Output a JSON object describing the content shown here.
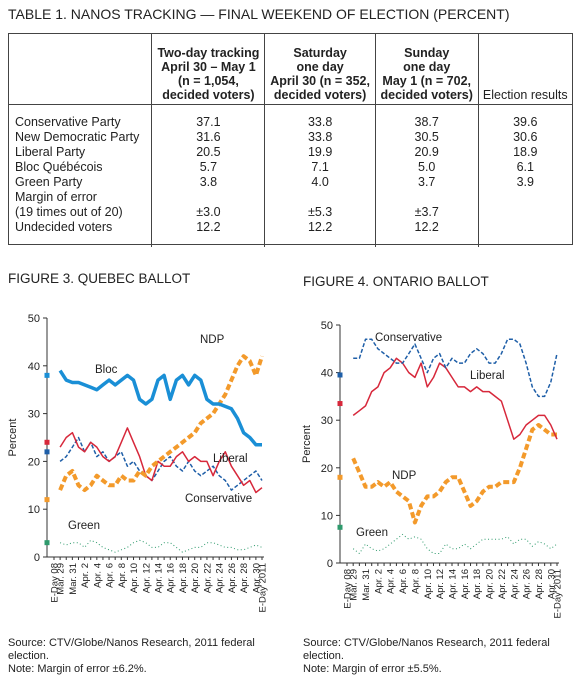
{
  "table": {
    "title": "TABLE 1. NANOS TRACKING — FINAL WEEKEND OF ELECTION (PERCENT)",
    "columns": [
      [
        "Two-day tracking",
        "April 30 – May 1",
        "(n = 1,054,",
        "decided voters)"
      ],
      [
        "Saturday",
        "one day",
        "April 30 (n = 352,",
        "decided voters)"
      ],
      [
        "Sunday",
        "one day",
        "May 1 (n = 702,",
        "decided voters)"
      ],
      [
        "Election results"
      ]
    ],
    "rows": [
      [
        "Conservative Party",
        "37.1",
        "33.8",
        "38.7",
        "39.6"
      ],
      [
        "New Democratic Party",
        "31.6",
        "33.8",
        "30.5",
        "30.6"
      ],
      [
        "Liberal Party",
        "20.5",
        "19.9",
        "20.9",
        "18.9"
      ],
      [
        "Bloc Québécois",
        "5.7",
        "7.1",
        "5.0",
        "6.1"
      ],
      [
        "Green Party",
        "3.8",
        "4.0",
        "3.7",
        "3.9"
      ],
      [
        "Margin of error\n(19 times out of 20)",
        "±3.0",
        "±5.3",
        "±3.7"
      ],
      [
        "Undecided voters",
        "12.2",
        "12.2",
        "12.2"
      ]
    ]
  },
  "chart_data": [
    {
      "type": "line",
      "title": "FIGURE 3. QUEBEC BALLOT",
      "ylabel": "Percent",
      "categories": [
        "E-Day 08",
        "Mar. 29",
        null,
        "Mar. 31",
        null,
        "Apr. 2",
        null,
        "Apr. 4",
        null,
        "Apr. 6",
        null,
        "Apr. 8",
        null,
        "Apr. 10",
        null,
        "Apr. 12",
        null,
        "Apr. 14",
        null,
        "Apr. 16",
        null,
        "Apr. 18",
        null,
        "Apr. 20",
        null,
        "Apr. 22",
        null,
        "Apr. 24",
        null,
        "Apr. 26",
        null,
        "Apr. 28",
        null,
        "Apr. 30",
        "E-Day 2011"
      ],
      "ylim": [
        0,
        50
      ],
      "yticks": [
        0,
        10,
        20,
        30,
        40,
        50
      ],
      "series": [
        {
          "name": "Green",
          "color": "#2e9a6c",
          "line_style": "dotted",
          "values": [
            3,
            3,
            2.5,
            3,
            3,
            2,
            3.5,
            3,
            2,
            1.5,
            1,
            1.5,
            2,
            3,
            3.5,
            3,
            2,
            2,
            3,
            3,
            2,
            1,
            1.5,
            2,
            2,
            3,
            3,
            2.5,
            2,
            2,
            1.5,
            1.5,
            2,
            2.5,
            2
          ]
        },
        {
          "name": "Conservative",
          "color": "#1f5fa8",
          "line_style": "dashed",
          "values": [
            22,
            20,
            21,
            23,
            25,
            22,
            24,
            21,
            22,
            20,
            21,
            22,
            19,
            20,
            18,
            17,
            16,
            18,
            20,
            21,
            19,
            18,
            20,
            18,
            17,
            18,
            19,
            17,
            16,
            14,
            15,
            16,
            17,
            18,
            16
          ]
        },
        {
          "name": "Liberal",
          "color": "#d7283b",
          "line_style": "solid",
          "values": [
            24,
            23,
            25,
            26,
            23,
            22,
            24,
            23,
            21,
            20,
            21,
            24,
            27,
            24,
            21,
            17,
            16,
            20,
            19,
            19,
            21,
            22,
            20,
            21,
            20,
            20,
            17,
            20,
            22,
            19,
            17,
            15,
            16,
            13.5,
            14.5
          ]
        },
        {
          "name": "NDP",
          "color": "#f39a2b",
          "line_style": "dashed-thick",
          "values": [
            12,
            14,
            17,
            18,
            15,
            14,
            15,
            17,
            16,
            15,
            15,
            17,
            16,
            16,
            18,
            17,
            19,
            20,
            21,
            22,
            23,
            24,
            25,
            26,
            28,
            29,
            30,
            32,
            34,
            37,
            40,
            42,
            41,
            38,
            42
          ]
        },
        {
          "name": "Bloc",
          "color": "#1a8fd6",
          "line_style": "solid-thick",
          "values": [
            38,
            39,
            37,
            36.5,
            36.5,
            36,
            35.5,
            35,
            36,
            37,
            36,
            37,
            38,
            37,
            33,
            32,
            33,
            37,
            38,
            33,
            37,
            38,
            36,
            38,
            37,
            33,
            32,
            32,
            31.5,
            31,
            29,
            26,
            25,
            23.5,
            23.5
          ]
        }
      ],
      "source": "Source: CTV/Globe/Nanos Research, 2011 federal election.",
      "note": "Note: Margin of error ±6.2%."
    },
    {
      "type": "line",
      "title": "FIGURE 4. ONTARIO BALLOT",
      "ylabel": "Percent",
      "categories": [
        "E-Day 08",
        "Mar. 29",
        null,
        "Mar. 31",
        null,
        "Apr. 2",
        null,
        "Apr. 4",
        null,
        "Apr. 6",
        null,
        "Apr. 8",
        null,
        "Apr. 10",
        null,
        "Apr. 12",
        null,
        "Apr. 14",
        null,
        "Apr. 16",
        null,
        "Apr. 18",
        null,
        "Apr. 20",
        null,
        "Apr. 22",
        null,
        "Apr. 24",
        null,
        "Apr. 26",
        null,
        "Apr. 28",
        null,
        "Apr. 30",
        "E-Day 2011"
      ],
      "ylim": [
        0,
        50
      ],
      "yticks": [
        0,
        10,
        20,
        30,
        40,
        50
      ],
      "series": [
        {
          "name": "Green",
          "color": "#2e9a6c",
          "line_style": "dotted",
          "values": [
            7.5,
            3,
            2,
            4,
            3,
            2.5,
            3,
            4,
            5,
            6,
            5,
            5.5,
            5,
            3,
            2,
            2,
            4,
            3,
            3,
            4,
            3,
            4,
            5,
            5,
            5,
            5,
            5.5,
            4,
            5,
            5,
            3.5,
            4.5,
            4,
            3,
            4
          ]
        },
        {
          "name": "NDP",
          "color": "#f39a2b",
          "line_style": "dashed-thick",
          "values": [
            18,
            22,
            19,
            16,
            16,
            17,
            16,
            17,
            15,
            14,
            13,
            8.5,
            12,
            14,
            14,
            15,
            17,
            18,
            18,
            15,
            12,
            13,
            15,
            16,
            16,
            17,
            17,
            17,
            20,
            24,
            28,
            29,
            28,
            27,
            27
          ]
        },
        {
          "name": "Liberal",
          "color": "#d7283b",
          "line_style": "solid",
          "values": [
            33.5,
            31,
            32,
            33,
            36,
            37,
            40,
            41,
            43,
            42,
            40,
            39,
            42,
            37,
            39,
            42,
            41,
            39,
            37,
            37,
            36,
            37,
            36,
            36,
            35,
            34,
            30,
            26,
            27,
            29,
            30,
            31,
            31,
            29,
            26
          ]
        },
        {
          "name": "Conservative",
          "color": "#1f5fa8",
          "line_style": "dashed",
          "values": [
            39.5,
            43,
            43,
            47,
            47,
            45,
            44,
            43,
            42,
            42,
            44,
            46,
            43,
            40,
            43,
            44,
            41,
            43,
            42,
            42,
            44,
            45,
            44,
            42,
            42,
            44,
            47,
            47,
            46,
            42,
            37,
            35,
            35,
            38,
            44
          ]
        }
      ],
      "source": "Source: CTV/Globe/Nanos Research, 2011 federal election.",
      "note": "Note: Margin of error ±5.5%."
    }
  ]
}
